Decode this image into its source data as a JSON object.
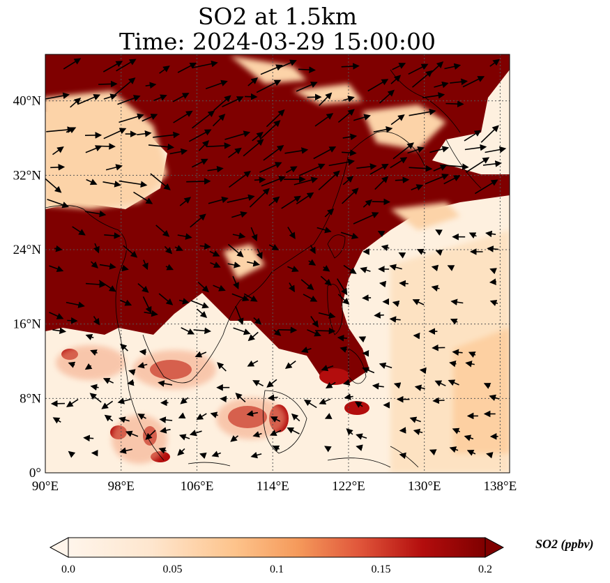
{
  "title": "SO2 at 1.5km",
  "subtitle": "Time: 2024-03-29 15:00:00",
  "map": {
    "lon_range": [
      90,
      139
    ],
    "lat_range": [
      0,
      45
    ],
    "lon_ticks": [
      "90°E",
      "98°E",
      "106°E",
      "114°E",
      "122°E",
      "130°E",
      "138°E"
    ],
    "lat_ticks": [
      "0°",
      "8°N",
      "16°N",
      "24°N",
      "32°N",
      "40°N"
    ],
    "lon_tick_values": [
      90,
      98,
      106,
      114,
      122,
      130,
      138
    ],
    "lat_tick_values": [
      0,
      8,
      16,
      24,
      32,
      40
    ],
    "gridlines": true
  },
  "colorbar": {
    "label": "SO2 (ppbv)",
    "ticks": [
      "0.0",
      "0.05",
      "0.1",
      "0.15",
      "0.2"
    ],
    "colors": [
      "#fff5eb",
      "#fdd49e",
      "#fdae6b",
      "#f16913",
      "#d7301f",
      "#a50f15",
      "#7f0000"
    ],
    "extend": "both"
  },
  "colors": {
    "background_low": "#fff4e6",
    "high": "#7f0000"
  }
}
